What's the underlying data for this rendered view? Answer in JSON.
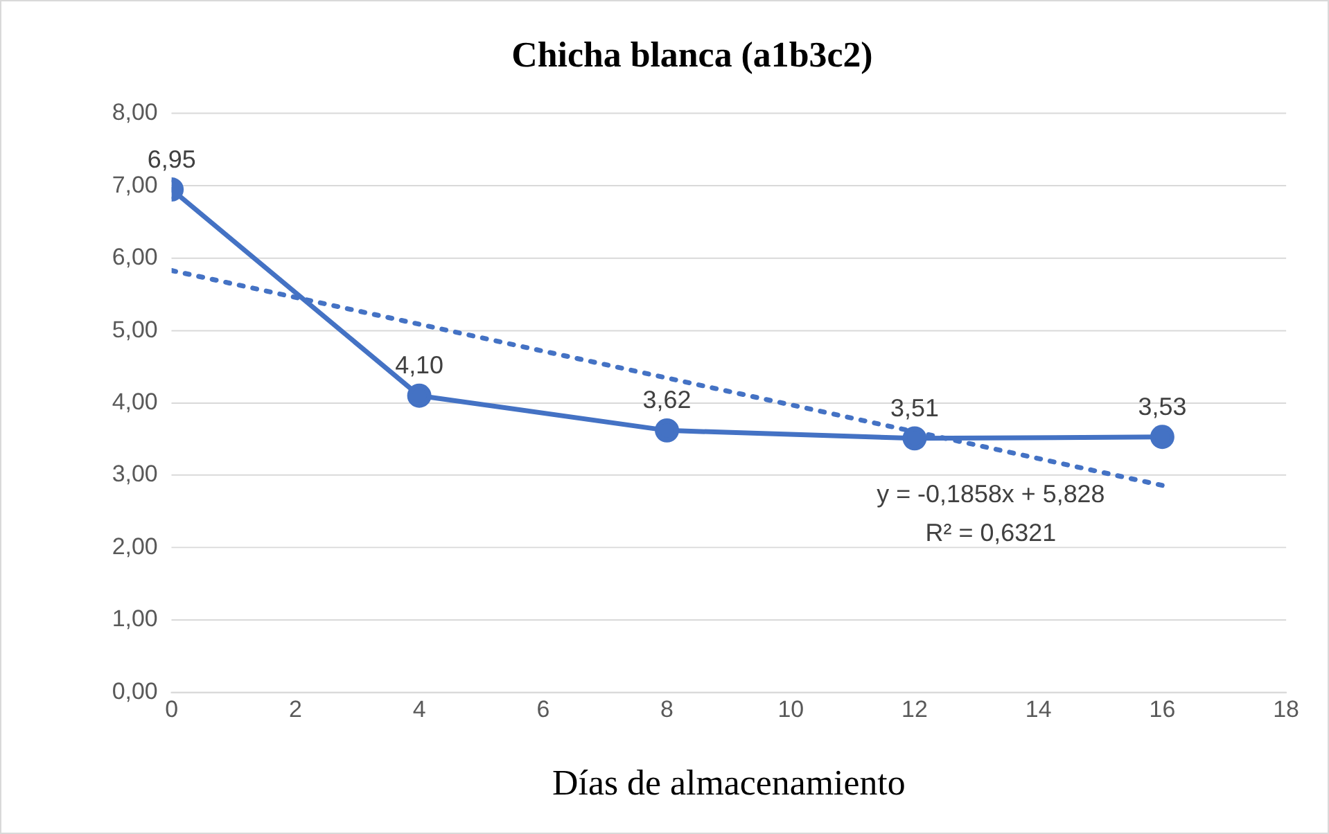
{
  "chart_data": {
    "type": "line",
    "title": "Chicha blanca (a1b3c2)",
    "xlabel": "Días de almacenamiento",
    "xlim": [
      0,
      18
    ],
    "xticks": [
      0,
      2,
      4,
      6,
      8,
      10,
      12,
      14,
      16,
      18
    ],
    "ylim": [
      0,
      8
    ],
    "yticks": [
      {
        "value": 0,
        "label": "0,00"
      },
      {
        "value": 1,
        "label": "1,00"
      },
      {
        "value": 2,
        "label": "2,00"
      },
      {
        "value": 3,
        "label": "3,00"
      },
      {
        "value": 4,
        "label": "4,00"
      },
      {
        "value": 5,
        "label": "5,00"
      },
      {
        "value": 6,
        "label": "6,00"
      },
      {
        "value": 7,
        "label": "7,00"
      },
      {
        "value": 8,
        "label": "8,00"
      }
    ],
    "grid": "y",
    "legend": false,
    "marker": "circle",
    "series": [
      {
        "color": "#4472c4",
        "x": [
          0,
          4,
          8,
          12,
          16
        ],
        "values": [
          6.95,
          4.1,
          3.62,
          3.51,
          3.53
        ],
        "value_labels": [
          "6,95",
          "4,10",
          "3,62",
          "3,51",
          "3,53"
        ]
      },
      {
        "color": "#4472c4",
        "x": [
          0,
          16
        ],
        "values": [
          5.83,
          2.86
        ],
        "marker": "none",
        "line_style": "dotted"
      }
    ],
    "annotations": [
      "y = -0,1858x + 5,828",
      "R² = 0,6321"
    ]
  }
}
